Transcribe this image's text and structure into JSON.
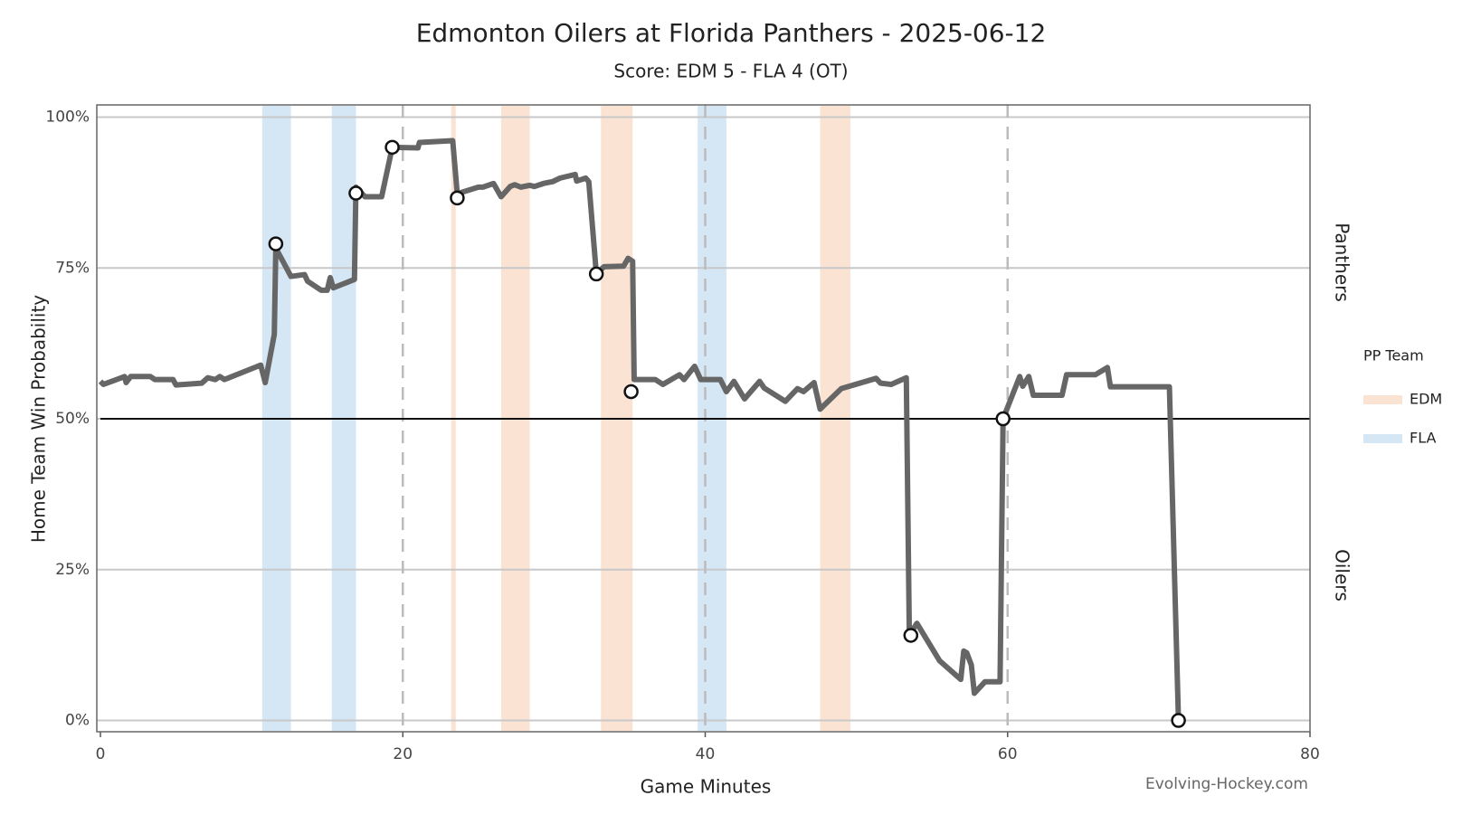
{
  "chart_data": {
    "type": "line",
    "title": "Edmonton Oilers at Florida Panthers - 2025-06-12",
    "subtitle": "Score: EDM 5 - FLA 4 (OT)",
    "x_label": "Game Minutes",
    "y_label": "Home Team Win Probability",
    "credit": "Evolving-Hockey.com",
    "side_labels": {
      "top": "Panthers",
      "bottom": "Oilers"
    },
    "legend_title": "PP Team",
    "color": "#666666",
    "x": [
      0,
      0.2,
      1.6,
      1.7,
      2.0,
      3.3,
      3.6,
      4.8,
      5.0,
      6.7,
      7.1,
      7.6,
      7.9,
      8.2,
      10.6,
      10.9,
      11.5,
      11.6,
      12.6,
      13.5,
      13.7,
      14.6,
      15.0,
      15.2,
      15.4,
      16.8,
      16.9,
      17.5,
      18.6,
      19.3,
      21.0,
      21.1,
      23.3,
      23.6,
      25.0,
      25.3,
      26.0,
      26.5,
      27.1,
      27.4,
      27.8,
      28.4,
      28.7,
      29.3,
      29.9,
      30.4,
      31.4,
      31.5,
      32.1,
      32.3,
      32.8,
      33.3,
      34.6,
      34.9,
      35.2,
      35.3,
      36.7,
      37.2,
      38.3,
      38.6,
      39.3,
      39.7,
      41.0,
      41.4,
      41.9,
      42.6,
      43.6,
      43.9,
      45.3,
      46.1,
      46.5,
      47.2,
      47.6,
      49.0,
      51.3,
      51.6,
      52.3,
      53.3,
      53.5,
      54.0,
      55.5,
      56.9,
      57.1,
      57.3,
      57.6,
      57.8,
      58.5,
      59.5,
      59.7,
      60.8,
      61.0,
      61.4,
      61.7,
      63.6,
      63.9,
      65.8,
      66.6,
      66.8,
      70.7,
      71.3
    ],
    "values": [
      56.2,
      55.7,
      57,
      56,
      57,
      57,
      56.5,
      56.5,
      55.6,
      55.9,
      56.8,
      56.5,
      57,
      56.5,
      58.9,
      56,
      64,
      78.3,
      73.6,
      73.9,
      72.8,
      71.3,
      71.3,
      73.4,
      71.7,
      73.1,
      88.4,
      86.8,
      86.8,
      95,
      94.9,
      95.8,
      96.1,
      87.3,
      88.4,
      88.4,
      89,
      86.8,
      88.5,
      88.8,
      88.4,
      88.7,
      88.5,
      89,
      89.3,
      89.9,
      90.5,
      89.4,
      89.9,
      89.3,
      74,
      75.2,
      75.3,
      76.6,
      76.1,
      56.5,
      56.5,
      55.7,
      57.3,
      56.5,
      58.7,
      56.5,
      56.5,
      54.5,
      56.2,
      53.3,
      56.2,
      55.1,
      52.9,
      55,
      54.5,
      56,
      51.6,
      55,
      56.7,
      55.9,
      55.7,
      56.8,
      14.1,
      16.1,
      9.9,
      6.8,
      11.5,
      11.2,
      9.2,
      4.5,
      6.4,
      6.4,
      50,
      57,
      55.4,
      57,
      53.9,
      53.9,
      57.3,
      57.3,
      58.5,
      55.3,
      55.3,
      0
    ],
    "goals": {
      "x": [
        11.6,
        16.9,
        19.3,
        23.6,
        32.8,
        35.1,
        53.6,
        59.7,
        71.3
      ],
      "values": [
        79,
        87.4,
        95,
        86.6,
        74,
        54.5,
        14.1,
        50,
        0
      ]
    },
    "power_plays": [
      {
        "name": "EDM",
        "color": "#fbe3d4",
        "intervals": [
          [
            23.2,
            23.5
          ],
          [
            26.5,
            28.4
          ],
          [
            33.1,
            35.2
          ],
          [
            47.6,
            49.6
          ]
        ]
      },
      {
        "name": "FLA",
        "color": "#d5e6f4",
        "intervals": [
          [
            10.7,
            12.6
          ],
          [
            15.3,
            16.9
          ],
          [
            39.5,
            41.4
          ]
        ]
      }
    ],
    "period_lines": [
      20,
      40,
      60
    ],
    "reference_line": 50,
    "xlim": [
      0,
      80
    ],
    "xticks": [
      0,
      20,
      40,
      60,
      80
    ],
    "ylim": [
      0,
      100
    ],
    "yticks": [
      {
        "value": 0,
        "label": "0%"
      },
      {
        "value": 25,
        "label": "25%"
      },
      {
        "value": 50,
        "label": "50%"
      },
      {
        "value": 75,
        "label": "75%"
      },
      {
        "value": 100,
        "label": "100%"
      }
    ],
    "grid": true
  }
}
